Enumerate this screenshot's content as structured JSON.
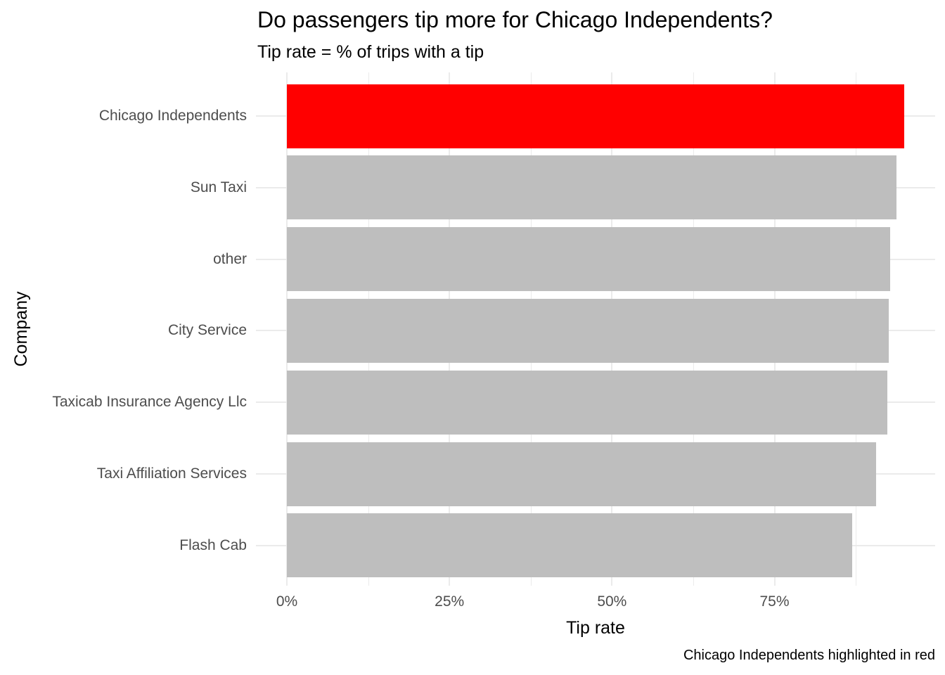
{
  "chart_data": {
    "type": "bar",
    "orientation": "horizontal",
    "title": "Do passengers tip more for Chicago Independents?",
    "subtitle": "Tip rate = % of trips with a tip",
    "xlabel": "Tip rate",
    "ylabel": "Company",
    "caption": "Chicago Independents highlighted in red",
    "categories": [
      "Chicago Independents",
      "Sun Taxi",
      "other",
      "City Service",
      "Taxicab Insurance Agency Llc",
      "Taxi Affiliation Services",
      "Flash Cab"
    ],
    "values": [
      94.9,
      93.8,
      92.8,
      92.6,
      92.4,
      90.6,
      86.9
    ],
    "unit": "%",
    "xlim": [
      0,
      100
    ],
    "x_tick_values": [
      0,
      25,
      50,
      75
    ],
    "x_tick_labels": [
      "0%",
      "25%",
      "50%",
      "75%"
    ],
    "x_minor_gridlines": [
      12.5,
      37.5,
      62.5,
      87.5
    ],
    "grid": true,
    "legend": false,
    "highlight_category": "Chicago Independents",
    "colors": {
      "highlight_bar": "#FF0000",
      "default_bar": "#BEBEBE",
      "gridline": "#EBEBEB",
      "axis_text": "#4D4D4D",
      "text": "#000000",
      "background": "#FFFFFF"
    }
  }
}
